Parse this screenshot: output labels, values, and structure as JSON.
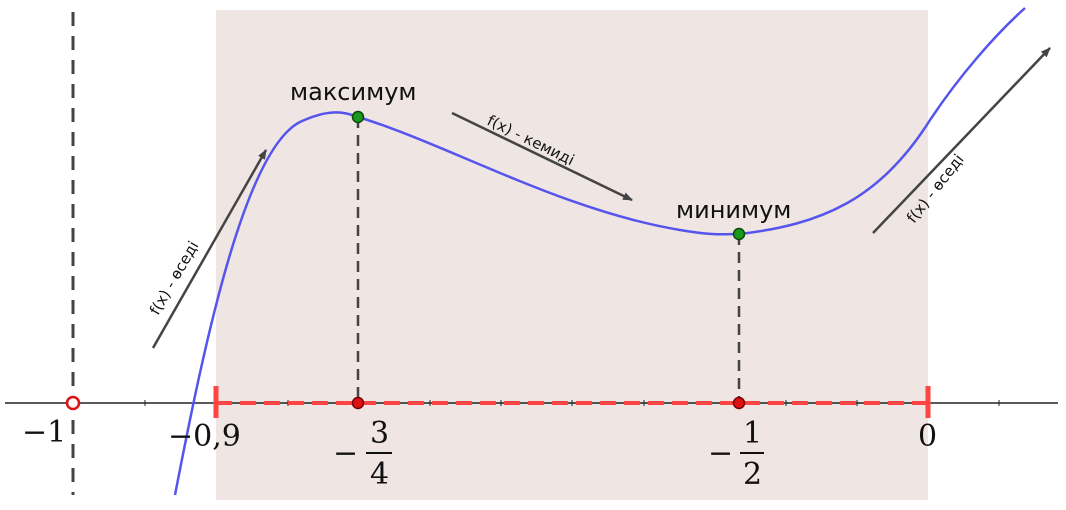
{
  "labels": {
    "maximum": "максимум",
    "minimum": "минимум",
    "increasing": "f(x) - өседі",
    "decreasing": "f(x) - кемиді"
  },
  "ticks": {
    "minus_one": "−1",
    "minus_point_nine": "−0,9",
    "zero": "0",
    "minus_sign": "−",
    "three": "3",
    "four": "4",
    "one": "1",
    "two": "2"
  },
  "colors": {
    "curve": "#5555ee",
    "interval": "#ff4444",
    "region": "#efe5e2",
    "extremum_point": "#1a9a1a",
    "critical_point": "#dd1111",
    "arrow": "#444444",
    "dashed_line": "#444444"
  }
}
